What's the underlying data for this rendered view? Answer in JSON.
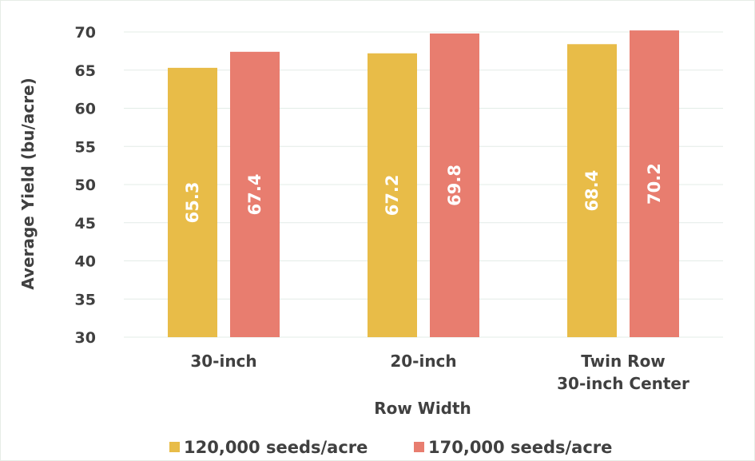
{
  "chart_data": {
    "type": "bar",
    "categories": [
      [
        "30-inch"
      ],
      [
        "20-inch"
      ],
      [
        "Twin Row",
        "30-inch Center"
      ]
    ],
    "series": [
      {
        "name": "120,000 seeds/acre",
        "values": [
          65.3,
          67.2,
          68.4
        ],
        "color": "#E8BC48"
      },
      {
        "name": "170,000 seeds/acre",
        "values": [
          67.4,
          69.8,
          70.2
        ],
        "color": "#E87D6F"
      }
    ],
    "xlabel": "Row Width",
    "ylabel": "Average Yield (bu/acre)",
    "ylim": [
      30,
      70
    ],
    "yticks": [
      30,
      35,
      40,
      45,
      50,
      55,
      60,
      65,
      70
    ],
    "grid": true,
    "legend_position": "bottom",
    "data_labels": true
  }
}
